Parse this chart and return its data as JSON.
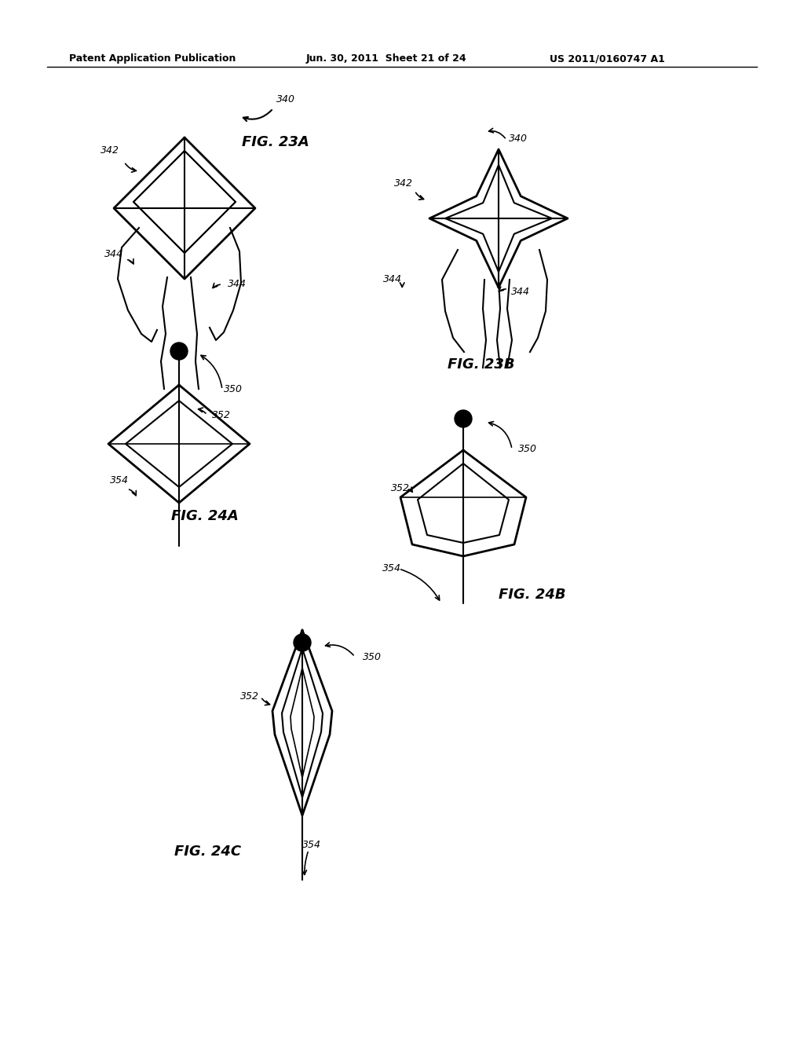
{
  "bg_color": "#ffffff",
  "header_left": "Patent Application Publication",
  "header_mid": "Jun. 30, 2011  Sheet 21 of 24",
  "header_right": "US 2011/0160747 A1",
  "line_width": 1.5,
  "line_color": "#000000"
}
